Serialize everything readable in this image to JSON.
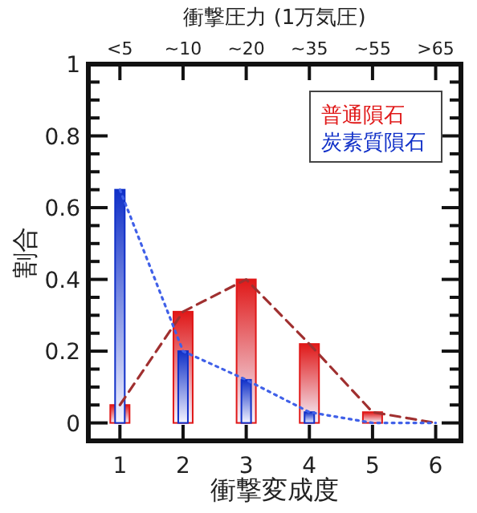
{
  "chart_data": {
    "type": "bar",
    "xlabel": "衝撃変成度",
    "ylabel": "割合",
    "x2label": "衝撃圧力 (1万気圧)",
    "x": [
      1,
      2,
      3,
      4,
      5,
      6
    ],
    "xlim": [
      0.5,
      6.4
    ],
    "xticks": [
      1,
      2,
      3,
      4,
      5,
      6
    ],
    "annotations": [
      {
        "text": "<5",
        "x": 1
      },
      {
        "text": "~10",
        "x": 2
      },
      {
        "text": "~20",
        "x": 3
      },
      {
        "text": "~35",
        "x": 4
      },
      {
        "text": "~55",
        "x": 5
      },
      {
        "text": ">65",
        "x": 6
      }
    ],
    "ylim": [
      -0.05,
      1
    ],
    "yticks": [
      0,
      {
        "value": 0.05,
        "label": null
      },
      {
        "value": 0.1,
        "label": null
      },
      {
        "value": 0.15,
        "label": null
      },
      0.2,
      {
        "value": 0.25,
        "label": null
      },
      {
        "value": 0.3,
        "label": null
      },
      {
        "value": 0.35,
        "label": null
      },
      0.4,
      {
        "value": 0.45,
        "label": null
      },
      {
        "value": 0.5,
        "label": null
      },
      {
        "value": 0.55,
        "label": null
      },
      0.6,
      {
        "value": 0.65,
        "label": null
      },
      {
        "value": 0.7,
        "label": null
      },
      {
        "value": 0.75,
        "label": null
      },
      0.8,
      {
        "value": 0.85,
        "label": null
      },
      {
        "value": 0.9,
        "label": null
      },
      {
        "value": 0.95,
        "label": null
      },
      1
    ],
    "grid": false,
    "legend": "top right",
    "series": [
      {
        "name": "普通隕石",
        "color": "#e01818",
        "values": [
          0.05,
          0.31,
          0.4,
          0.22,
          0.03,
          0
        ]
      },
      {
        "name": "炭素質隕石",
        "color": "#1030c8",
        "values": [
          0.65,
          0.2,
          0.12,
          0.03,
          0,
          0
        ]
      },
      {
        "type": "line",
        "color": "#a03030",
        "line_style": "dashed",
        "marker": "none",
        "values": [
          0.05,
          0.31,
          0.4,
          0.22,
          0.03,
          0
        ]
      },
      {
        "type": "line",
        "color": "#4060e8",
        "line_style": "dotted",
        "marker": "none",
        "values": [
          0.65,
          0.2,
          0.12,
          0.03,
          0,
          0
        ]
      }
    ]
  }
}
